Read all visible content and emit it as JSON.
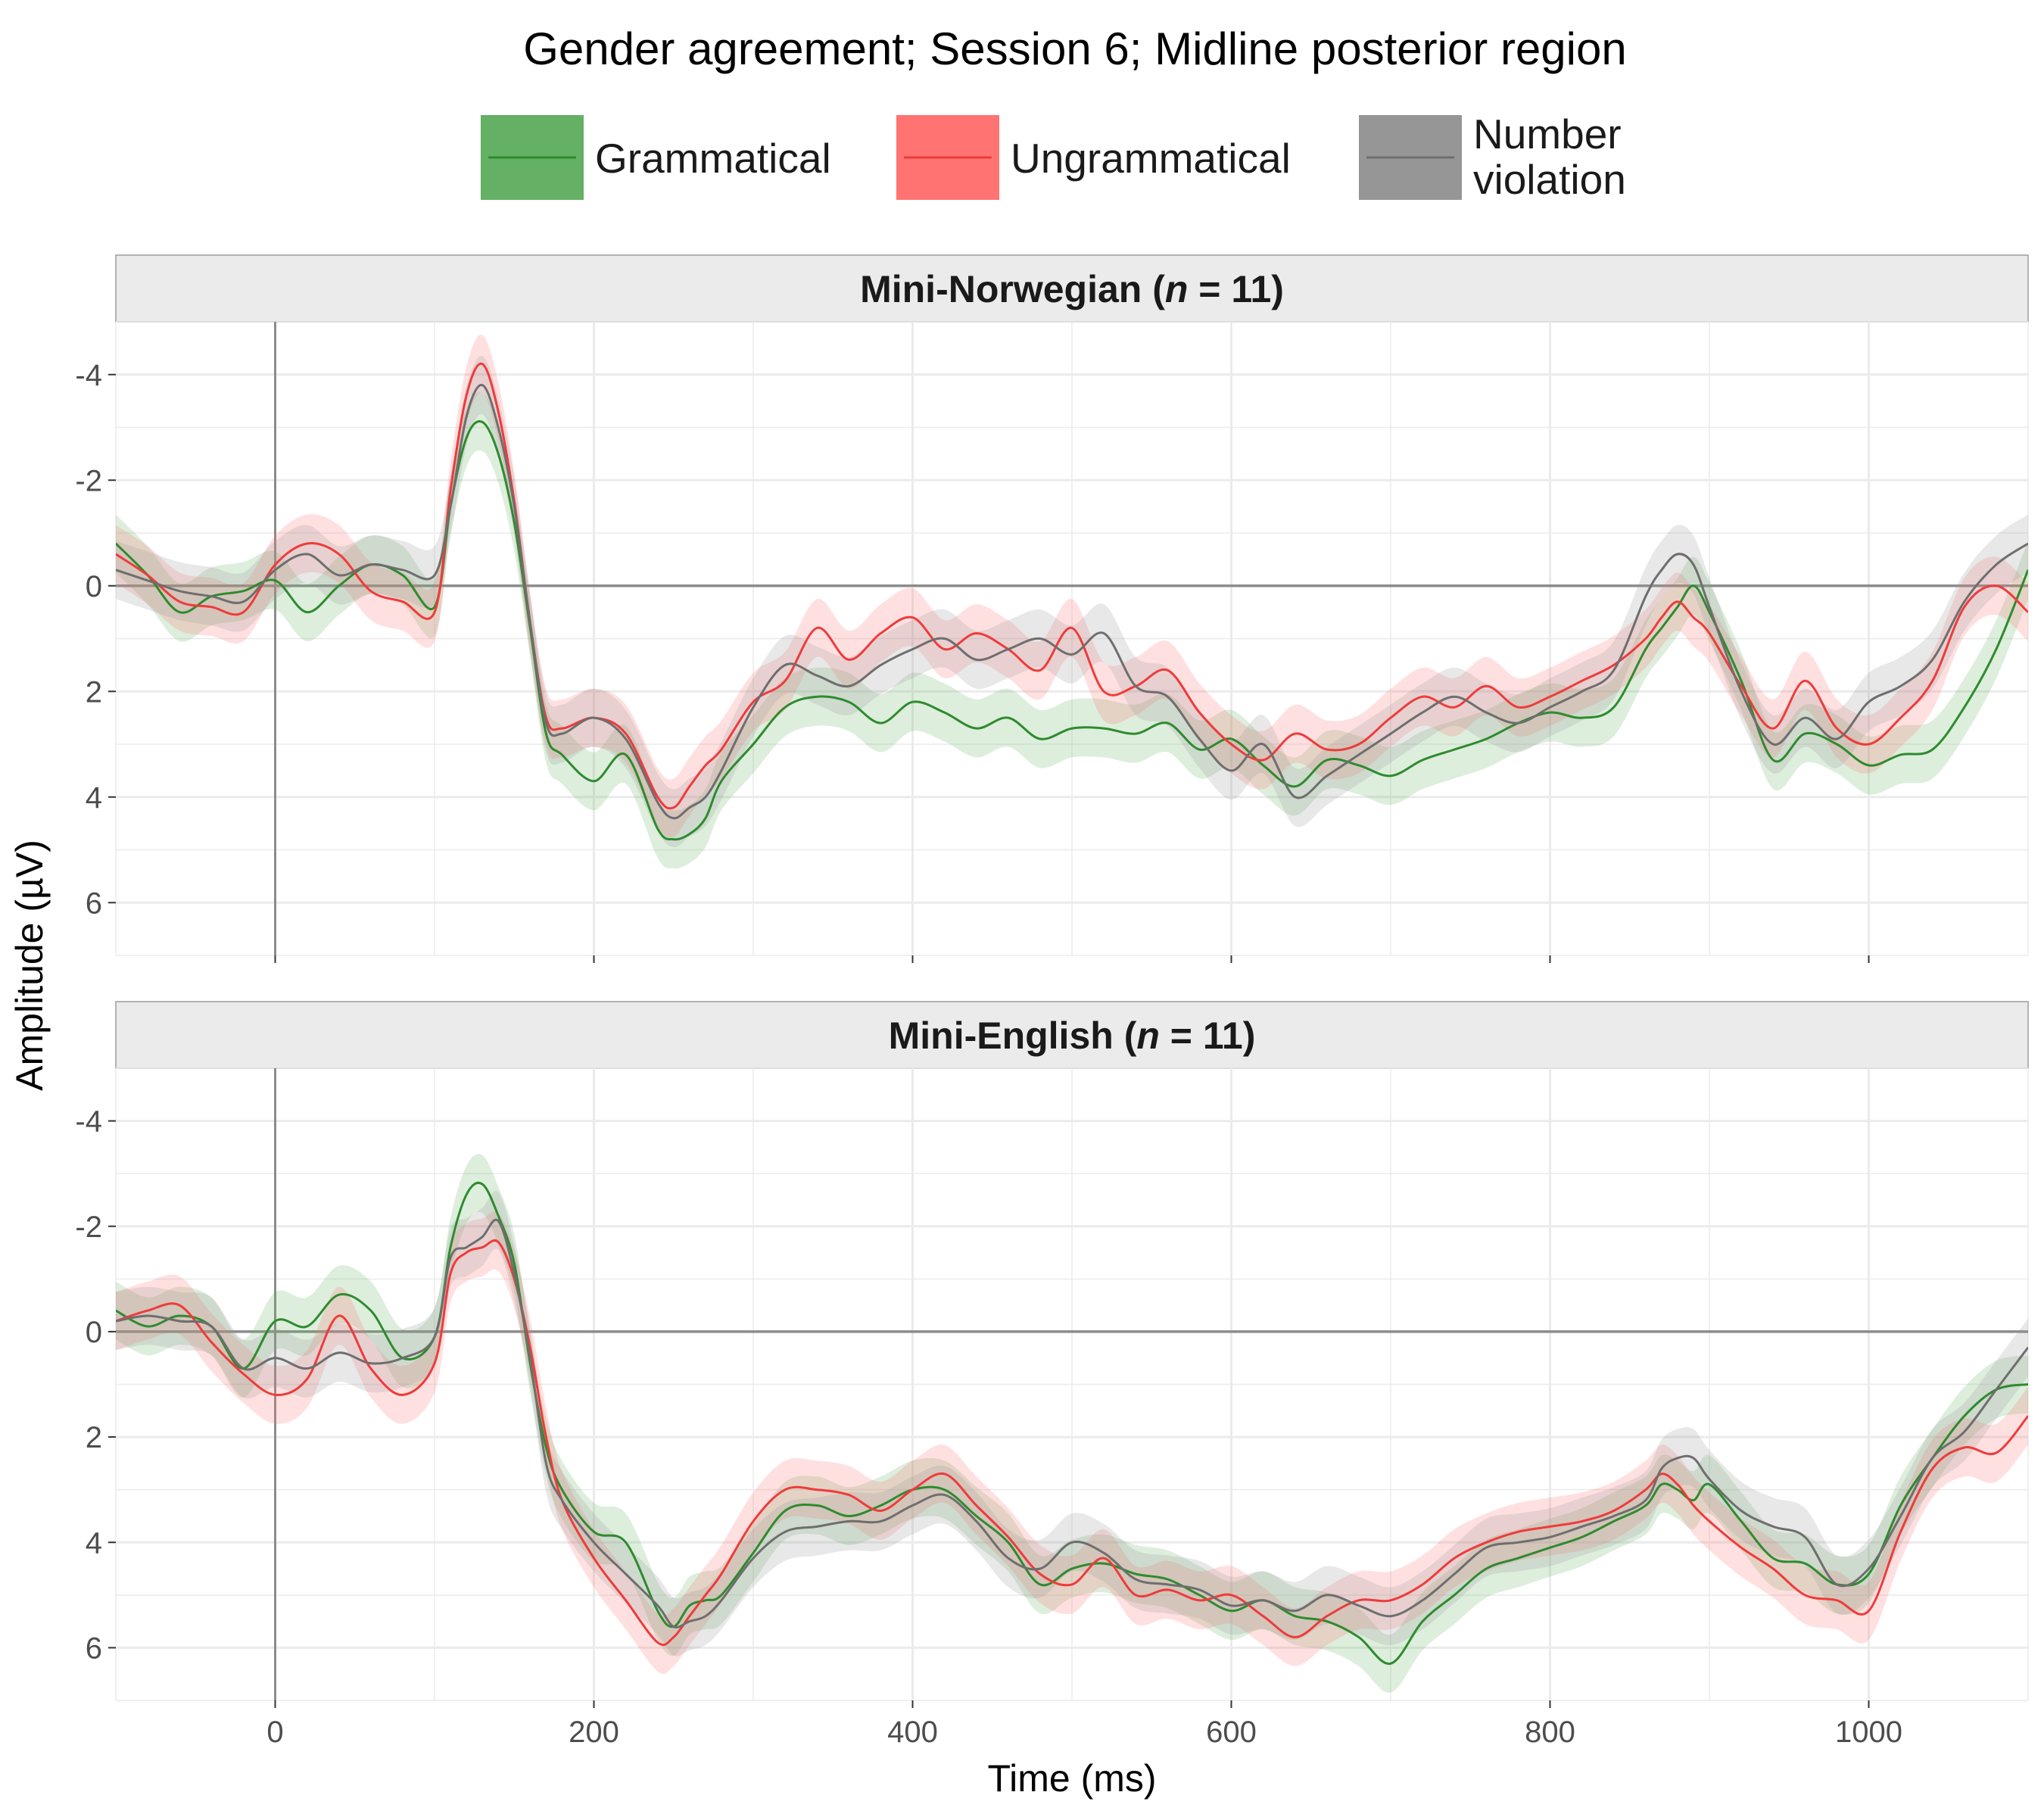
{
  "chart_data": {
    "type": "line",
    "title": "Gender agreement; Session 6; Midline posterior region",
    "xlabel": "Time (ms)",
    "ylabel": "Amplitude (µV)",
    "x_ticks": [
      0,
      200,
      400,
      600,
      800,
      1000
    ],
    "y_ticks": [
      -4,
      -2,
      0,
      2,
      4,
      6
    ],
    "xlim": [
      -100,
      1100
    ],
    "ylim": [
      -5,
      7
    ],
    "y_reversed": true,
    "grid": true,
    "legend_position": "top",
    "ribbons": true,
    "legend": [
      {
        "name": "Grammatical",
        "color": "#2e8b2e",
        "ribbon": "#64b064"
      },
      {
        "name": "Ungrammatical",
        "color": "#ef3b3b",
        "ribbon": "#ff7373"
      },
      {
        "name": "Number\nviolation",
        "color": "#6e6e6e",
        "ribbon": "#969696"
      }
    ],
    "panels": [
      {
        "label": "Mini-Norwegian (",
        "label_italic": "n",
        "label_tail": " = 11)",
        "x": [
          -100,
          -80,
          -60,
          -40,
          -20,
          0,
          20,
          40,
          60,
          80,
          100,
          110,
          120,
          130,
          140,
          150,
          160,
          170,
          180,
          200,
          220,
          240,
          250,
          260,
          270,
          280,
          300,
          320,
          340,
          360,
          380,
          400,
          420,
          440,
          460,
          480,
          500,
          520,
          540,
          560,
          580,
          600,
          620,
          640,
          660,
          680,
          700,
          720,
          740,
          760,
          780,
          800,
          820,
          840,
          860,
          870,
          880,
          890,
          900,
          920,
          940,
          960,
          980,
          1000,
          1020,
          1040,
          1060,
          1080,
          1100
        ],
        "series": [
          {
            "name": "Grammatical",
            "values": [
              -0.8,
              -0.2,
              0.5,
              0.2,
              0.1,
              -0.1,
              0.5,
              0.0,
              -0.4,
              -0.2,
              0.4,
              -1.5,
              -2.8,
              -3.1,
              -2.5,
              -1.2,
              0.8,
              2.8,
              3.2,
              3.7,
              3.2,
              4.6,
              4.8,
              4.7,
              4.4,
              3.7,
              3.0,
              2.3,
              2.1,
              2.2,
              2.6,
              2.2,
              2.4,
              2.7,
              2.5,
              2.9,
              2.7,
              2.7,
              2.8,
              2.6,
              3.1,
              2.9,
              3.4,
              3.8,
              3.3,
              3.4,
              3.6,
              3.3,
              3.1,
              2.9,
              2.6,
              2.4,
              2.5,
              2.3,
              1.2,
              0.8,
              0.4,
              0.0,
              0.5,
              1.8,
              3.3,
              2.8,
              3.0,
              3.4,
              3.2,
              3.1,
              2.3,
              1.2,
              -0.3
            ]
          },
          {
            "name": "Ungrammatical",
            "values": [
              -0.6,
              -0.2,
              0.3,
              0.4,
              0.5,
              -0.4,
              -0.8,
              -0.6,
              0.1,
              0.3,
              0.5,
              -1.8,
              -3.6,
              -4.2,
              -3.3,
              -1.6,
              0.7,
              2.5,
              2.7,
              2.5,
              2.8,
              4.0,
              4.2,
              3.8,
              3.4,
              3.1,
              2.2,
              1.8,
              0.8,
              1.4,
              0.9,
              0.6,
              1.2,
              0.9,
              1.2,
              1.6,
              0.8,
              2.0,
              1.9,
              1.6,
              2.4,
              3.0,
              3.3,
              2.8,
              3.1,
              3.0,
              2.5,
              2.1,
              2.3,
              1.9,
              2.3,
              2.1,
              1.8,
              1.5,
              1.0,
              0.6,
              0.3,
              0.6,
              0.9,
              1.9,
              2.7,
              1.8,
              2.7,
              3.0,
              2.5,
              1.8,
              0.4,
              0.0,
              0.5
            ]
          },
          {
            "name": "Number violation",
            "values": [
              -0.3,
              -0.1,
              0.1,
              0.2,
              0.3,
              -0.3,
              -0.6,
              -0.2,
              -0.4,
              -0.3,
              -0.2,
              -1.5,
              -3.2,
              -3.8,
              -3.0,
              -1.5,
              0.7,
              2.6,
              2.8,
              2.5,
              2.9,
              4.1,
              4.4,
              4.2,
              4.0,
              3.5,
              2.3,
              1.5,
              1.7,
              1.9,
              1.5,
              1.2,
              1.0,
              1.4,
              1.2,
              1.0,
              1.3,
              0.9,
              1.9,
              2.1,
              2.9,
              3.5,
              3.0,
              4.0,
              3.6,
              3.2,
              2.8,
              2.4,
              2.1,
              2.4,
              2.6,
              2.3,
              2.0,
              1.6,
              0.2,
              -0.3,
              -0.6,
              -0.4,
              0.4,
              2.0,
              3.0,
              2.5,
              2.9,
              2.2,
              1.9,
              1.4,
              0.3,
              -0.4,
              -0.8
            ]
          }
        ]
      },
      {
        "label": "Mini-English (",
        "label_italic": "n",
        "label_tail": " = 11)",
        "x": [
          -100,
          -80,
          -60,
          -40,
          -20,
          0,
          20,
          40,
          60,
          80,
          100,
          110,
          120,
          130,
          140,
          150,
          160,
          170,
          180,
          200,
          220,
          240,
          250,
          260,
          270,
          280,
          300,
          320,
          340,
          360,
          380,
          400,
          420,
          440,
          460,
          480,
          500,
          520,
          540,
          560,
          580,
          600,
          620,
          640,
          660,
          680,
          700,
          720,
          740,
          760,
          780,
          800,
          820,
          840,
          860,
          870,
          880,
          890,
          900,
          920,
          940,
          960,
          980,
          1000,
          1020,
          1040,
          1060,
          1080,
          1100
        ],
        "series": [
          {
            "name": "Grammatical",
            "values": [
              -0.4,
              -0.1,
              -0.3,
              -0.1,
              0.7,
              -0.2,
              -0.1,
              -0.7,
              -0.4,
              0.5,
              0.1,
              -1.6,
              -2.6,
              -2.8,
              -2.2,
              -1.3,
              0.6,
              2.2,
              3.0,
              3.8,
              4.0,
              5.3,
              5.6,
              5.2,
              5.1,
              5.0,
              4.2,
              3.4,
              3.3,
              3.5,
              3.3,
              3.0,
              3.0,
              3.5,
              4.0,
              4.8,
              4.5,
              4.4,
              4.6,
              4.7,
              5.0,
              5.3,
              5.1,
              5.4,
              5.5,
              5.8,
              6.3,
              5.5,
              5.0,
              4.5,
              4.3,
              4.1,
              3.9,
              3.6,
              3.3,
              2.9,
              3.0,
              3.2,
              2.9,
              3.6,
              4.3,
              4.4,
              4.8,
              4.6,
              3.3,
              2.4,
              1.6,
              1.1,
              1.0
            ]
          },
          {
            "name": "Ungrammatical",
            "values": [
              -0.2,
              -0.4,
              -0.5,
              0.2,
              0.8,
              1.2,
              0.9,
              -0.3,
              0.7,
              1.2,
              0.6,
              -1.1,
              -1.5,
              -1.6,
              -1.7,
              -1.0,
              0.3,
              2.0,
              3.2,
              4.3,
              5.1,
              5.9,
              5.8,
              5.4,
              5.0,
              4.6,
              3.6,
              3.0,
              3.0,
              3.1,
              3.4,
              3.0,
              2.7,
              3.3,
              3.9,
              4.6,
              4.8,
              4.3,
              5.0,
              4.9,
              5.1,
              5.0,
              5.4,
              5.8,
              5.4,
              5.1,
              5.1,
              4.8,
              4.3,
              4.0,
              3.8,
              3.7,
              3.6,
              3.4,
              3.0,
              2.7,
              2.9,
              3.3,
              3.6,
              4.1,
              4.5,
              5.0,
              5.1,
              5.3,
              3.8,
              2.6,
              2.2,
              2.3,
              1.6
            ]
          },
          {
            "name": "Number violation",
            "values": [
              -0.2,
              -0.3,
              -0.2,
              -0.1,
              0.7,
              0.5,
              0.7,
              0.4,
              0.6,
              0.5,
              0.1,
              -1.4,
              -1.6,
              -1.8,
              -2.1,
              -1.1,
              0.5,
              2.5,
              3.2,
              4.0,
              4.6,
              5.2,
              5.6,
              5.5,
              5.4,
              5.1,
              4.3,
              3.8,
              3.7,
              3.6,
              3.6,
              3.3,
              3.1,
              3.6,
              4.3,
              4.5,
              4.0,
              4.2,
              4.7,
              4.8,
              4.9,
              5.2,
              5.1,
              5.3,
              5.0,
              5.2,
              5.4,
              5.1,
              4.6,
              4.1,
              4.0,
              3.9,
              3.7,
              3.5,
              3.2,
              2.6,
              2.4,
              2.4,
              2.8,
              3.4,
              3.7,
              3.9,
              4.8,
              4.5,
              3.5,
              2.4,
              1.9,
              1.1,
              0.3
            ]
          }
        ]
      }
    ]
  }
}
